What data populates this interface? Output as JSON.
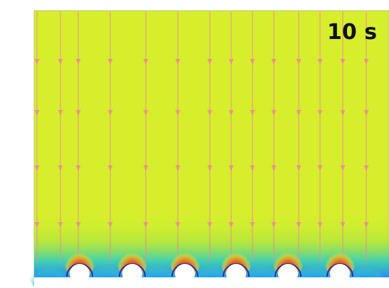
{
  "time_label": "10 s"
}
